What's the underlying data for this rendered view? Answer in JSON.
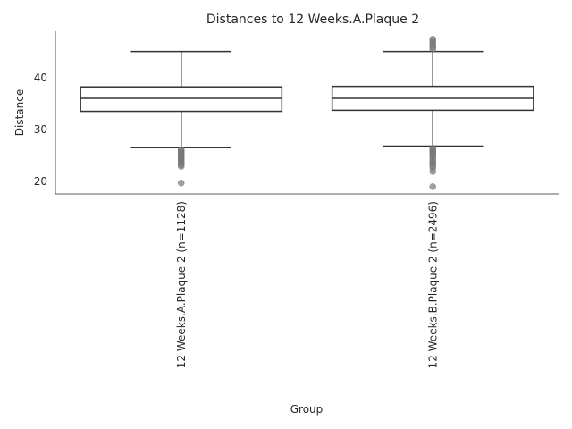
{
  "chart_data": {
    "type": "boxplot",
    "title": "Distances to 12 Weeks.A.Plaque 2",
    "xlabel": "Group",
    "ylabel": "Distance",
    "ylim": [
      17.6,
      48.9
    ],
    "yticks": [
      20,
      30,
      40
    ],
    "grid": false,
    "colors": {
      "line": "#333333",
      "outlier": "#808080",
      "axis": "#262626"
    },
    "categories": [
      "12 Weeks.A.Plaque 2 (n=1128)",
      "12 Weeks.B.Plaque 2 (n=2496)"
    ],
    "boxes": [
      {
        "whisker_low": 26.5,
        "q1": 33.5,
        "median": 36.0,
        "q3": 38.2,
        "whisker_high": 45.0,
        "outliers": [
          26.1,
          25.9,
          25.6,
          25.3,
          25.0,
          24.7,
          24.4,
          24.1,
          23.8,
          23.5,
          23.2,
          22.9,
          19.7
        ]
      },
      {
        "whisker_low": 26.8,
        "q1": 33.7,
        "median": 36.0,
        "q3": 38.3,
        "whisker_high": 45.0,
        "outliers": [
          47.4,
          47.0,
          46.6,
          46.2,
          45.8,
          45.5,
          26.4,
          26.1,
          25.8,
          25.5,
          25.2,
          24.9,
          24.5,
          24.1,
          23.7,
          23.4,
          23.0,
          22.6,
          21.9,
          19.0
        ]
      }
    ]
  }
}
